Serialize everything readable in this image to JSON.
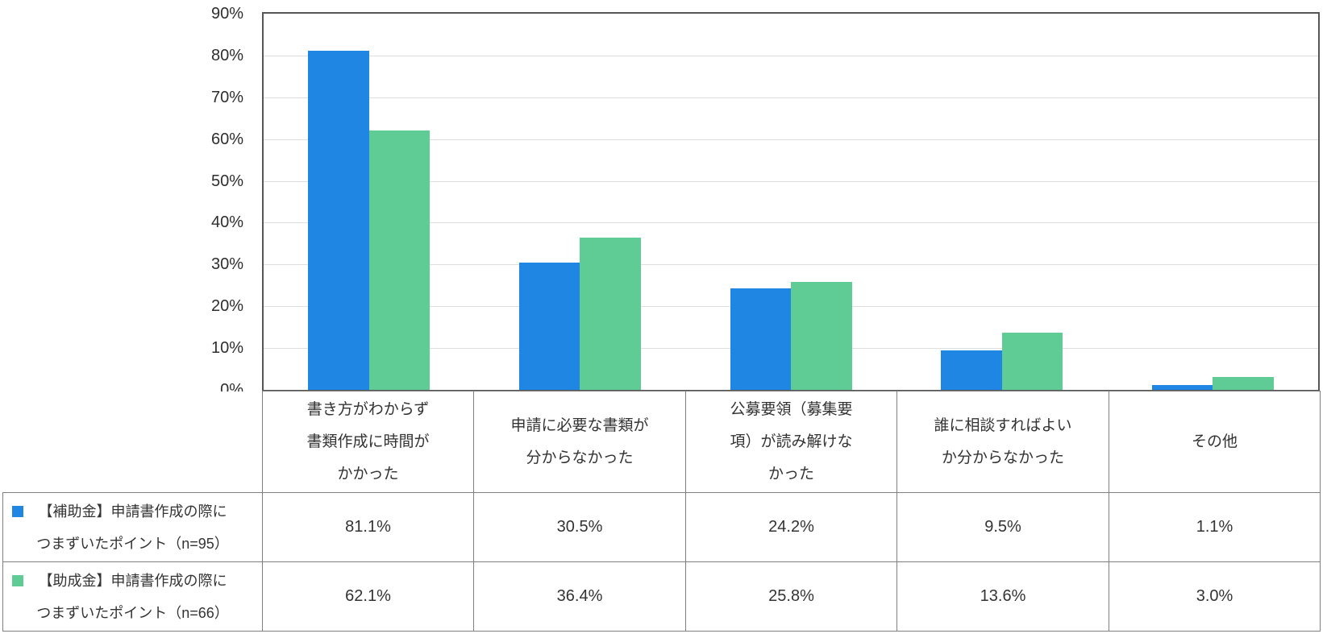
{
  "colors": {
    "series1": "#1f87e3",
    "series2": "#5fcb95",
    "plot_border": "#565656",
    "grid_line": "#dedede",
    "table_border": "#7f7f7f",
    "text": "#333333"
  },
  "chart_data": {
    "type": "bar",
    "title": "",
    "xlabel": "",
    "ylabel": "",
    "ylim": [
      0,
      90
    ],
    "ytick_values": [
      0,
      10,
      20,
      30,
      40,
      50,
      60,
      70,
      80,
      90
    ],
    "ytick_labels": [
      "0%",
      "10%",
      "20%",
      "30%",
      "40%",
      "50%",
      "60%",
      "70%",
      "80%",
      "90%"
    ],
    "grid": true,
    "legend_position": "table-left",
    "categories": [
      "書き方がわからず\n書類作成に時間が\nかかった",
      "申請に必要な書類が\n分からなかった",
      "公募要領（募集要\n項）が読み解けな\nかった",
      "誰に相談すればよい\nか分からなかった",
      "その他"
    ],
    "series": [
      {
        "name": "【補助金】申請書作成の際に\nつまずいたポイント（n=95）",
        "color": "#1f87e3",
        "values": [
          81.1,
          30.5,
          24.2,
          9.5,
          1.1
        ],
        "value_labels": [
          "81.1%",
          "30.5%",
          "24.2%",
          "9.5%",
          "1.1%"
        ]
      },
      {
        "name": "【助成金】申請書作成の際に\nつまずいたポイント（n=66）",
        "color": "#5fcb95",
        "values": [
          62.1,
          36.4,
          25.8,
          13.6,
          3.0
        ],
        "value_labels": [
          "62.1%",
          "36.4%",
          "25.8%",
          "13.6%",
          "3.0%"
        ]
      }
    ]
  }
}
